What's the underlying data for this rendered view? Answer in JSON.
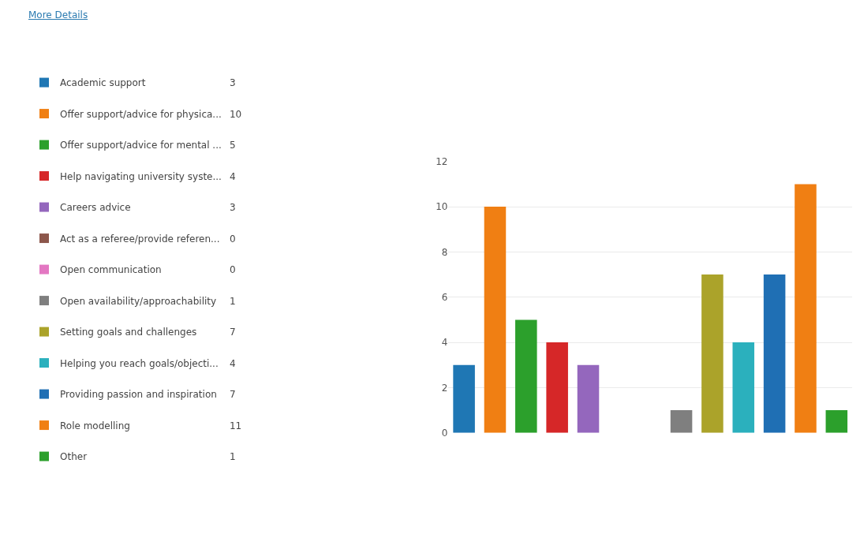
{
  "chart_data": {
    "type": "bar",
    "categories": [
      null,
      null,
      null,
      null,
      null,
      null,
      null,
      null,
      null,
      null,
      null,
      null,
      null
    ],
    "series": [
      {
        "name": "Academic support",
        "color": "#1f77b4",
        "values": [
          3,
          null,
          null,
          null,
          null,
          null,
          null,
          null,
          null,
          null,
          null,
          null,
          null
        ]
      },
      {
        "name": "Offer support/advice for physica...",
        "color": "#f07f13",
        "values": [
          null,
          10,
          null,
          null,
          null,
          null,
          null,
          null,
          null,
          null,
          null,
          null,
          null
        ]
      },
      {
        "name": "Offer support/advice for mental ...",
        "color": "#2ca02c",
        "values": [
          null,
          null,
          5,
          null,
          null,
          null,
          null,
          null,
          null,
          null,
          null,
          null,
          null
        ]
      },
      {
        "name": "Help navigating university syste...",
        "color": "#d62728",
        "values": [
          null,
          null,
          null,
          4,
          null,
          null,
          null,
          null,
          null,
          null,
          null,
          null,
          null
        ]
      },
      {
        "name": "Careers advice",
        "color": "#9467bd",
        "values": [
          null,
          null,
          null,
          null,
          3,
          null,
          null,
          null,
          null,
          null,
          null,
          null,
          null
        ]
      },
      {
        "name": "Act as a referee/provide referen...",
        "color": "#8c564b",
        "values": [
          null,
          null,
          null,
          null,
          null,
          0,
          null,
          null,
          null,
          null,
          null,
          null,
          null
        ]
      },
      {
        "name": "Open communication",
        "color": "#e377c2",
        "values": [
          null,
          null,
          null,
          null,
          null,
          null,
          0,
          null,
          null,
          null,
          null,
          null,
          null
        ]
      },
      {
        "name": "Open availability/approachability",
        "color": "#7f7f7f",
        "values": [
          null,
          null,
          null,
          null,
          null,
          null,
          null,
          1,
          null,
          null,
          null,
          null,
          null
        ]
      },
      {
        "name": "Setting goals and challenges",
        "color": "#aba32a",
        "values": [
          null,
          null,
          null,
          null,
          null,
          null,
          null,
          null,
          7,
          null,
          null,
          null,
          null
        ]
      },
      {
        "name": "Helping you reach goals/objecti...",
        "color": "#2bb0bd",
        "values": [
          null,
          null,
          null,
          null,
          null,
          null,
          null,
          null,
          null,
          4,
          null,
          null,
          null
        ]
      },
      {
        "name": "Providing passion and inspiration",
        "color": "#1f6fb4",
        "values": [
          null,
          null,
          null,
          null,
          null,
          null,
          null,
          null,
          null,
          null,
          7,
          null,
          null
        ]
      },
      {
        "name": "Role modelling",
        "color": "#f07f13",
        "values": [
          null,
          null,
          null,
          null,
          null,
          null,
          null,
          null,
          null,
          null,
          null,
          11,
          null
        ]
      },
      {
        "name": "Other",
        "color": "#2ca02c",
        "values": [
          null,
          null,
          null,
          null,
          null,
          null,
          null,
          null,
          null,
          null,
          null,
          null,
          1
        ]
      }
    ],
    "ylim": [
      0,
      12
    ],
    "yticks": [
      0,
      2,
      4,
      6,
      8,
      10,
      12
    ],
    "grid": "y",
    "legend": "left",
    "tick_labels": "y",
    "annotations": [
      "More Details",
      "3",
      "10",
      "5",
      "4",
      "3",
      "0",
      "0",
      "1",
      "7",
      "4",
      "7",
      "11",
      "1"
    ]
  }
}
